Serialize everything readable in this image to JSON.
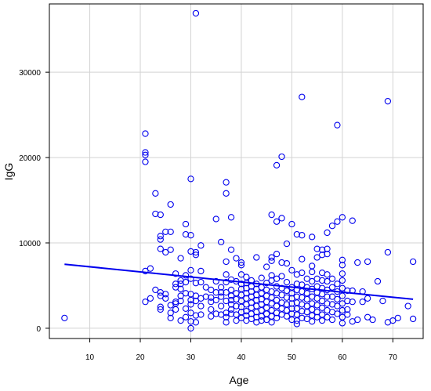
{
  "chart_data": {
    "type": "scatter",
    "title": "",
    "xlabel": "Age",
    "ylabel": "IgG",
    "xlim": [
      2,
      76
    ],
    "ylim": [
      -1200,
      38000
    ],
    "xticks": [
      10,
      20,
      30,
      40,
      50,
      60,
      70
    ],
    "yticks": [
      0,
      10000,
      20000,
      30000
    ],
    "grid": true,
    "legend": "none",
    "point_color": "#0000ee",
    "line_color": "#0000ee",
    "trend_line": {
      "x": [
        5,
        74
      ],
      "y": [
        7500,
        3400
      ]
    },
    "points": [
      [
        5,
        1200
      ],
      [
        21,
        22800
      ],
      [
        21,
        20600
      ],
      [
        21,
        20300
      ],
      [
        21,
        19500
      ],
      [
        21,
        6700
      ],
      [
        21,
        3100
      ],
      [
        22,
        7000
      ],
      [
        22,
        3500
      ],
      [
        23,
        15800
      ],
      [
        23,
        13400
      ],
      [
        23,
        4500
      ],
      [
        24,
        13300
      ],
      [
        24,
        10800
      ],
      [
        24,
        10400
      ],
      [
        24,
        9300
      ],
      [
        24,
        4200
      ],
      [
        24,
        3800
      ],
      [
        24,
        2500
      ],
      [
        24,
        2200
      ],
      [
        25,
        11300
      ],
      [
        25,
        8900
      ],
      [
        25,
        4000
      ],
      [
        25,
        3500
      ],
      [
        26,
        14500
      ],
      [
        26,
        11300
      ],
      [
        26,
        9200
      ],
      [
        26,
        2700
      ],
      [
        26,
        1800
      ],
      [
        26,
        1200
      ],
      [
        27,
        6400
      ],
      [
        27,
        5200
      ],
      [
        27,
        4800
      ],
      [
        27,
        2900
      ],
      [
        27,
        2200
      ],
      [
        27,
        3100
      ],
      [
        28,
        8200
      ],
      [
        28,
        5600
      ],
      [
        28,
        5200
      ],
      [
        28,
        4600
      ],
      [
        28,
        3800
      ],
      [
        28,
        3200
      ],
      [
        28,
        900
      ],
      [
        29,
        12200
      ],
      [
        29,
        11000
      ],
      [
        29,
        6200
      ],
      [
        29,
        5400
      ],
      [
        29,
        4100
      ],
      [
        29,
        2300
      ],
      [
        29,
        1300
      ],
      [
        30,
        17500
      ],
      [
        30,
        10900
      ],
      [
        30,
        9000
      ],
      [
        30,
        6800
      ],
      [
        30,
        5800
      ],
      [
        30,
        4000
      ],
      [
        30,
        3300
      ],
      [
        30,
        2800
      ],
      [
        30,
        1800
      ],
      [
        30,
        800
      ],
      [
        30,
        0
      ],
      [
        31,
        36900
      ],
      [
        31,
        8900
      ],
      [
        31,
        8600
      ],
      [
        31,
        5300
      ],
      [
        31,
        3800
      ],
      [
        31,
        3200
      ],
      [
        31,
        1500
      ],
      [
        31,
        700
      ],
      [
        32,
        9700
      ],
      [
        32,
        6700
      ],
      [
        32,
        5400
      ],
      [
        32,
        3500
      ],
      [
        32,
        2600
      ],
      [
        32,
        1600
      ],
      [
        33,
        4800
      ],
      [
        33,
        3700
      ],
      [
        34,
        4500
      ],
      [
        34,
        3600
      ],
      [
        34,
        3100
      ],
      [
        34,
        2200
      ],
      [
        34,
        1400
      ],
      [
        35,
        12800
      ],
      [
        35,
        5500
      ],
      [
        35,
        4200
      ],
      [
        35,
        3300
      ],
      [
        35,
        1700
      ],
      [
        36,
        10100
      ],
      [
        36,
        4800
      ],
      [
        36,
        4200
      ],
      [
        36,
        3700
      ],
      [
        36,
        2600
      ],
      [
        36,
        1600
      ],
      [
        37,
        17100
      ],
      [
        37,
        15800
      ],
      [
        37,
        7800
      ],
      [
        37,
        6300
      ],
      [
        37,
        5400
      ],
      [
        37,
        4200
      ],
      [
        37,
        3200
      ],
      [
        37,
        1800
      ],
      [
        37,
        1300
      ],
      [
        37,
        700
      ],
      [
        38,
        13000
      ],
      [
        38,
        9200
      ],
      [
        38,
        5700
      ],
      [
        38,
        4500
      ],
      [
        38,
        3800
      ],
      [
        38,
        3300
      ],
      [
        38,
        2800
      ],
      [
        38,
        2200
      ],
      [
        38,
        1700
      ],
      [
        39,
        8200
      ],
      [
        39,
        5500
      ],
      [
        39,
        4100
      ],
      [
        39,
        3400
      ],
      [
        39,
        2600
      ],
      [
        39,
        1600
      ],
      [
        39,
        900
      ],
      [
        40,
        7700
      ],
      [
        40,
        7400
      ],
      [
        40,
        6300
      ],
      [
        40,
        5200
      ],
      [
        40,
        4600
      ],
      [
        40,
        3900
      ],
      [
        40,
        3200
      ],
      [
        40,
        2500
      ],
      [
        40,
        1900
      ],
      [
        40,
        1200
      ],
      [
        41,
        6000
      ],
      [
        41,
        5300
      ],
      [
        41,
        4700
      ],
      [
        41,
        4100
      ],
      [
        41,
        3500
      ],
      [
        41,
        2800
      ],
      [
        41,
        2000
      ],
      [
        41,
        1500
      ],
      [
        41,
        900
      ],
      [
        42,
        5600
      ],
      [
        42,
        4900
      ],
      [
        42,
        4300
      ],
      [
        42,
        3700
      ],
      [
        42,
        3000
      ],
      [
        42,
        2400
      ],
      [
        42,
        1700
      ],
      [
        42,
        1100
      ],
      [
        43,
        8300
      ],
      [
        43,
        5200
      ],
      [
        43,
        4600
      ],
      [
        43,
        3900
      ],
      [
        43,
        3300
      ],
      [
        43,
        2600
      ],
      [
        43,
        1900
      ],
      [
        43,
        1300
      ],
      [
        43,
        700
      ],
      [
        44,
        5900
      ],
      [
        44,
        4800
      ],
      [
        44,
        4100
      ],
      [
        44,
        3400
      ],
      [
        44,
        2800
      ],
      [
        44,
        2100
      ],
      [
        44,
        1400
      ],
      [
        44,
        900
      ],
      [
        45,
        7200
      ],
      [
        45,
        5300
      ],
      [
        45,
        4500
      ],
      [
        45,
        3800
      ],
      [
        45,
        3100
      ],
      [
        45,
        2400
      ],
      [
        45,
        1700
      ],
      [
        45,
        1000
      ],
      [
        46,
        13300
      ],
      [
        46,
        8300
      ],
      [
        46,
        7900
      ],
      [
        46,
        6200
      ],
      [
        46,
        5600
      ],
      [
        46,
        4300
      ],
      [
        46,
        3600
      ],
      [
        46,
        2900
      ],
      [
        46,
        2100
      ],
      [
        46,
        1400
      ],
      [
        46,
        700
      ],
      [
        47,
        19100
      ],
      [
        47,
        12500
      ],
      [
        47,
        8700
      ],
      [
        47,
        5800
      ],
      [
        47,
        4900
      ],
      [
        47,
        4100
      ],
      [
        47,
        3300
      ],
      [
        47,
        2600
      ],
      [
        47,
        1800
      ],
      [
        47,
        1200
      ],
      [
        48,
        20100
      ],
      [
        48,
        12900
      ],
      [
        48,
        7700
      ],
      [
        48,
        6100
      ],
      [
        48,
        4700
      ],
      [
        48,
        3900
      ],
      [
        48,
        3000
      ],
      [
        48,
        2300
      ],
      [
        48,
        1600
      ],
      [
        49,
        9900
      ],
      [
        49,
        7600
      ],
      [
        49,
        5400
      ],
      [
        49,
        4400
      ],
      [
        49,
        3600
      ],
      [
        49,
        2800
      ],
      [
        49,
        2100
      ],
      [
        49,
        1400
      ],
      [
        50,
        12200
      ],
      [
        50,
        6800
      ],
      [
        50,
        4800
      ],
      [
        50,
        4100
      ],
      [
        50,
        3500
      ],
      [
        50,
        2900
      ],
      [
        50,
        2300
      ],
      [
        50,
        1700
      ],
      [
        50,
        1000
      ],
      [
        51,
        11000
      ],
      [
        51,
        6300
      ],
      [
        51,
        5200
      ],
      [
        51,
        4500
      ],
      [
        51,
        3700
      ],
      [
        51,
        3000
      ],
      [
        51,
        2300
      ],
      [
        51,
        1600
      ],
      [
        51,
        900
      ],
      [
        51,
        500
      ],
      [
        52,
        27100
      ],
      [
        52,
        10900
      ],
      [
        52,
        8100
      ],
      [
        52,
        6500
      ],
      [
        52,
        5100
      ],
      [
        52,
        4300
      ],
      [
        52,
        3600
      ],
      [
        52,
        2800
      ],
      [
        52,
        2000
      ],
      [
        52,
        1200
      ],
      [
        53,
        5800
      ],
      [
        53,
        4800
      ],
      [
        53,
        4100
      ],
      [
        53,
        3400
      ],
      [
        53,
        2600
      ],
      [
        53,
        1900
      ],
      [
        53,
        1100
      ],
      [
        54,
        10700
      ],
      [
        54,
        7300
      ],
      [
        54,
        6600
      ],
      [
        54,
        5500
      ],
      [
        54,
        4600
      ],
      [
        54,
        3700
      ],
      [
        54,
        2900
      ],
      [
        54,
        2200
      ],
      [
        54,
        1500
      ],
      [
        54,
        800
      ],
      [
        55,
        9300
      ],
      [
        55,
        8300
      ],
      [
        55,
        5800
      ],
      [
        55,
        4900
      ],
      [
        55,
        4200
      ],
      [
        55,
        3500
      ],
      [
        55,
        2700
      ],
      [
        55,
        1900
      ],
      [
        55,
        1300
      ],
      [
        56,
        9200
      ],
      [
        56,
        8600
      ],
      [
        56,
        6500
      ],
      [
        56,
        5600
      ],
      [
        56,
        4700
      ],
      [
        56,
        4000
      ],
      [
        56,
        3200
      ],
      [
        56,
        2400
      ],
      [
        56,
        1600
      ],
      [
        56,
        900
      ],
      [
        57,
        11200
      ],
      [
        57,
        9300
      ],
      [
        57,
        8700
      ],
      [
        57,
        6300
      ],
      [
        57,
        5500
      ],
      [
        57,
        4500
      ],
      [
        57,
        3700
      ],
      [
        57,
        2900
      ],
      [
        57,
        2100
      ],
      [
        57,
        1300
      ],
      [
        58,
        12000
      ],
      [
        58,
        5800
      ],
      [
        58,
        4800
      ],
      [
        58,
        3700
      ],
      [
        58,
        2800
      ],
      [
        58,
        1900
      ],
      [
        58,
        1000
      ],
      [
        59,
        23800
      ],
      [
        59,
        12500
      ],
      [
        59,
        5200
      ],
      [
        59,
        4300
      ],
      [
        59,
        3400
      ],
      [
        59,
        2600
      ],
      [
        59,
        1700
      ],
      [
        60,
        13000
      ],
      [
        60,
        8000
      ],
      [
        60,
        7400
      ],
      [
        60,
        6400
      ],
      [
        60,
        5600
      ],
      [
        60,
        4700
      ],
      [
        60,
        3800
      ],
      [
        60,
        2900
      ],
      [
        60,
        2100
      ],
      [
        60,
        1300
      ],
      [
        60,
        600
      ],
      [
        61,
        4400
      ],
      [
        61,
        3200
      ],
      [
        61,
        2200
      ],
      [
        61,
        1600
      ],
      [
        62,
        12600
      ],
      [
        62,
        4400
      ],
      [
        62,
        3100
      ],
      [
        62,
        800
      ],
      [
        63,
        7700
      ],
      [
        63,
        1000
      ],
      [
        64,
        4300
      ],
      [
        64,
        3100
      ],
      [
        65,
        7800
      ],
      [
        65,
        3500
      ],
      [
        65,
        1300
      ],
      [
        66,
        1000
      ],
      [
        67,
        5500
      ],
      [
        68,
        3200
      ],
      [
        69,
        26600
      ],
      [
        69,
        8900
      ],
      [
        69,
        700
      ],
      [
        70,
        900
      ],
      [
        71,
        1200
      ],
      [
        73,
        2600
      ],
      [
        74,
        7800
      ],
      [
        74,
        1100
      ]
    ]
  }
}
